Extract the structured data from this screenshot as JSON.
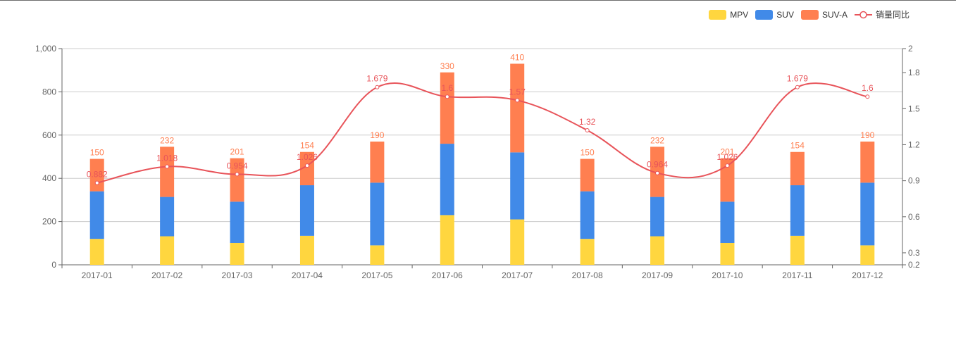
{
  "legend": {
    "mpv": "MPV",
    "suv": "SUV",
    "suva": "SUV-A",
    "yoy": "销量同比"
  },
  "colors": {
    "mpv": "#ffd63f",
    "suv": "#418ae8",
    "suva": "#ff7f50",
    "yoy": "#e8545a",
    "axis": "#666666",
    "grid": "#cccccc"
  },
  "chart_data": {
    "type": "bar",
    "stacked": true,
    "categories": [
      "2017-01",
      "2017-02",
      "2017-03",
      "2017-04",
      "2017-05",
      "2017-06",
      "2017-07",
      "2017-08",
      "2017-09",
      "2017-10",
      "2017-11",
      "2017-12"
    ],
    "series": [
      {
        "name": "MPV",
        "type": "bar",
        "values": [
          120,
          132,
          101,
          134,
          90,
          230,
          210,
          120,
          132,
          101,
          134,
          90
        ]
      },
      {
        "name": "SUV",
        "type": "bar",
        "values": [
          220,
          182,
          191,
          234,
          290,
          330,
          310,
          220,
          182,
          191,
          234,
          290
        ]
      },
      {
        "name": "SUV-A",
        "type": "bar",
        "values": [
          150,
          232,
          201,
          154,
          190,
          330,
          410,
          150,
          232,
          201,
          154,
          190
        ]
      },
      {
        "name": "销量同比",
        "type": "line",
        "axis": "right",
        "values": [
          0.882,
          1.018,
          0.954,
          1.026,
          1.679,
          1.6,
          1.57,
          1.32,
          0.964,
          1.026,
          1.679,
          1.6
        ]
      }
    ],
    "y_left": {
      "min": 0,
      "max": 1000,
      "ticks": [
        "0",
        "200",
        "400",
        "600",
        "800",
        "1,000"
      ],
      "tick_values": [
        0,
        200,
        400,
        600,
        800,
        1000
      ]
    },
    "y_right": {
      "min": 0.2,
      "max": 2,
      "ticks": [
        "0.2",
        "0.3",
        "0.6",
        "0.9",
        "1.2",
        "1.5",
        "1.8",
        "2"
      ],
      "tick_values": [
        0.2,
        0.3,
        0.6,
        0.9,
        1.2,
        1.5,
        1.8,
        2
      ]
    },
    "legend_position": "top-right",
    "grid": true
  }
}
